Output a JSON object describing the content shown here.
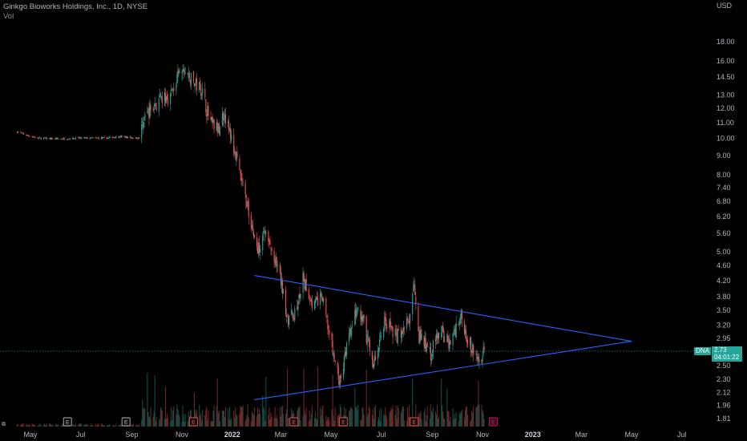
{
  "header": {
    "title": "Ginkgo Bioworks Holdings, Inc., 1D, NYSE",
    "volume_label": "Vol"
  },
  "colors": {
    "up": "#26a69a",
    "down": "#ef5350",
    "trendline": "#2962ff",
    "background": "#000000",
    "current_price_line": "#26a69a",
    "earnings_neutral": "#b2b5be",
    "earnings_miss": "#ef5350",
    "earnings_upcoming": "#c2185b"
  },
  "current_price": {
    "ticker": "DNA",
    "price": "2.73",
    "countdown": "04:01:22",
    "value": 2.73
  },
  "chart_data": {
    "type": "candlestick",
    "title": "Ginkgo Bioworks Holdings, Inc., 1D, NYSE",
    "y_axis": {
      "label": "USD",
      "scale": "log",
      "ticks": [
        "18.00",
        "16.00",
        "14.50",
        "13.00",
        "12.00",
        "11.00",
        "10.00",
        "9.00",
        "8.00",
        "7.40",
        "6.80",
        "6.20",
        "5.60",
        "5.00",
        "4.60",
        "4.20",
        "3.80",
        "3.50",
        "3.20",
        "2.95",
        "2.73",
        "2.50",
        "2.30",
        "2.12",
        "1.96",
        "1.81"
      ]
    },
    "x_axis": {
      "ticks": [
        {
          "label": "May",
          "date": "2021-05-01"
        },
        {
          "label": "Jul",
          "date": "2021-07-01"
        },
        {
          "label": "Sep",
          "date": "2021-09-01"
        },
        {
          "label": "Nov",
          "date": "2021-11-01"
        },
        {
          "label": "2022",
          "date": "2022-01-01",
          "year": true
        },
        {
          "label": "Mar",
          "date": "2022-03-01"
        },
        {
          "label": "May",
          "date": "2022-05-01"
        },
        {
          "label": "Jul",
          "date": "2022-07-01"
        },
        {
          "label": "Sep",
          "date": "2022-09-01"
        },
        {
          "label": "Nov",
          "date": "2022-11-01"
        },
        {
          "label": "2023",
          "date": "2023-01-01",
          "year": true
        },
        {
          "label": "Mar",
          "date": "2023-03-01"
        },
        {
          "label": "May",
          "date": "2023-05-01"
        },
        {
          "label": "Jul",
          "date": "2023-07-01"
        }
      ]
    },
    "price_path": [
      [
        "2021-04-15",
        10.4
      ],
      [
        "2021-04-25",
        10.2
      ],
      [
        "2021-05-10",
        10.0
      ],
      [
        "2021-06-01",
        9.95
      ],
      [
        "2021-07-01",
        10.0
      ],
      [
        "2021-08-01",
        10.0
      ],
      [
        "2021-08-15",
        10.1
      ],
      [
        "2021-09-10",
        10.0
      ],
      [
        "2021-09-17",
        11.5
      ],
      [
        "2021-09-25",
        12.0
      ],
      [
        "2021-10-05",
        12.5
      ],
      [
        "2021-10-18",
        13.0
      ],
      [
        "2021-10-28",
        14.6
      ],
      [
        "2021-11-05",
        15.0
      ],
      [
        "2021-11-15",
        14.0
      ],
      [
        "2021-11-25",
        13.5
      ],
      [
        "2021-12-05",
        11.0
      ],
      [
        "2021-12-15",
        10.5
      ],
      [
        "2021-12-22",
        11.8
      ],
      [
        "2022-01-05",
        9.0
      ],
      [
        "2022-01-20",
        6.5
      ],
      [
        "2022-02-01",
        5.0
      ],
      [
        "2022-02-08",
        5.8
      ],
      [
        "2022-02-15",
        5.2
      ],
      [
        "2022-02-28",
        4.3
      ],
      [
        "2022-03-10",
        3.3
      ],
      [
        "2022-03-20",
        3.5
      ],
      [
        "2022-03-28",
        4.2
      ],
      [
        "2022-04-10",
        3.6
      ],
      [
        "2022-04-20",
        3.8
      ],
      [
        "2022-05-05",
        2.6
      ],
      [
        "2022-05-12",
        2.25
      ],
      [
        "2022-05-20",
        2.8
      ],
      [
        "2022-06-01",
        3.5
      ],
      [
        "2022-06-10",
        3.2
      ],
      [
        "2022-06-22",
        2.5
      ],
      [
        "2022-07-05",
        3.3
      ],
      [
        "2022-07-20",
        3.0
      ],
      [
        "2022-08-05",
        3.3
      ],
      [
        "2022-08-10",
        4.2
      ],
      [
        "2022-08-16",
        3.0
      ],
      [
        "2022-08-30",
        2.7
      ],
      [
        "2022-09-10",
        3.1
      ],
      [
        "2022-09-22",
        2.85
      ],
      [
        "2022-10-05",
        3.4
      ],
      [
        "2022-10-18",
        2.8
      ],
      [
        "2022-10-28",
        2.55
      ],
      [
        "2022-11-03",
        2.73
      ]
    ],
    "trendlines": [
      {
        "name": "upper",
        "points": [
          [
            "2022-01-28",
            4.33
          ],
          [
            "2023-05-01",
            2.9
          ]
        ]
      },
      {
        "name": "lower",
        "points": [
          [
            "2022-01-28",
            2.03
          ],
          [
            "2023-05-01",
            2.9
          ]
        ]
      }
    ],
    "earnings_events": [
      {
        "date": "2021-06-15",
        "label": "E",
        "kind": "neutral"
      },
      {
        "date": "2021-08-25",
        "label": "E",
        "kind": "neutral"
      },
      {
        "date": "2021-11-15",
        "label": "E",
        "kind": "miss"
      },
      {
        "date": "2022-03-17",
        "label": "E",
        "kind": "miss"
      },
      {
        "date": "2022-05-16",
        "label": "E",
        "kind": "miss"
      },
      {
        "date": "2022-08-10",
        "label": "E",
        "kind": "miss"
      },
      {
        "date": "2022-11-14",
        "label": "E",
        "kind": "upcoming"
      }
    ],
    "grid": false
  }
}
